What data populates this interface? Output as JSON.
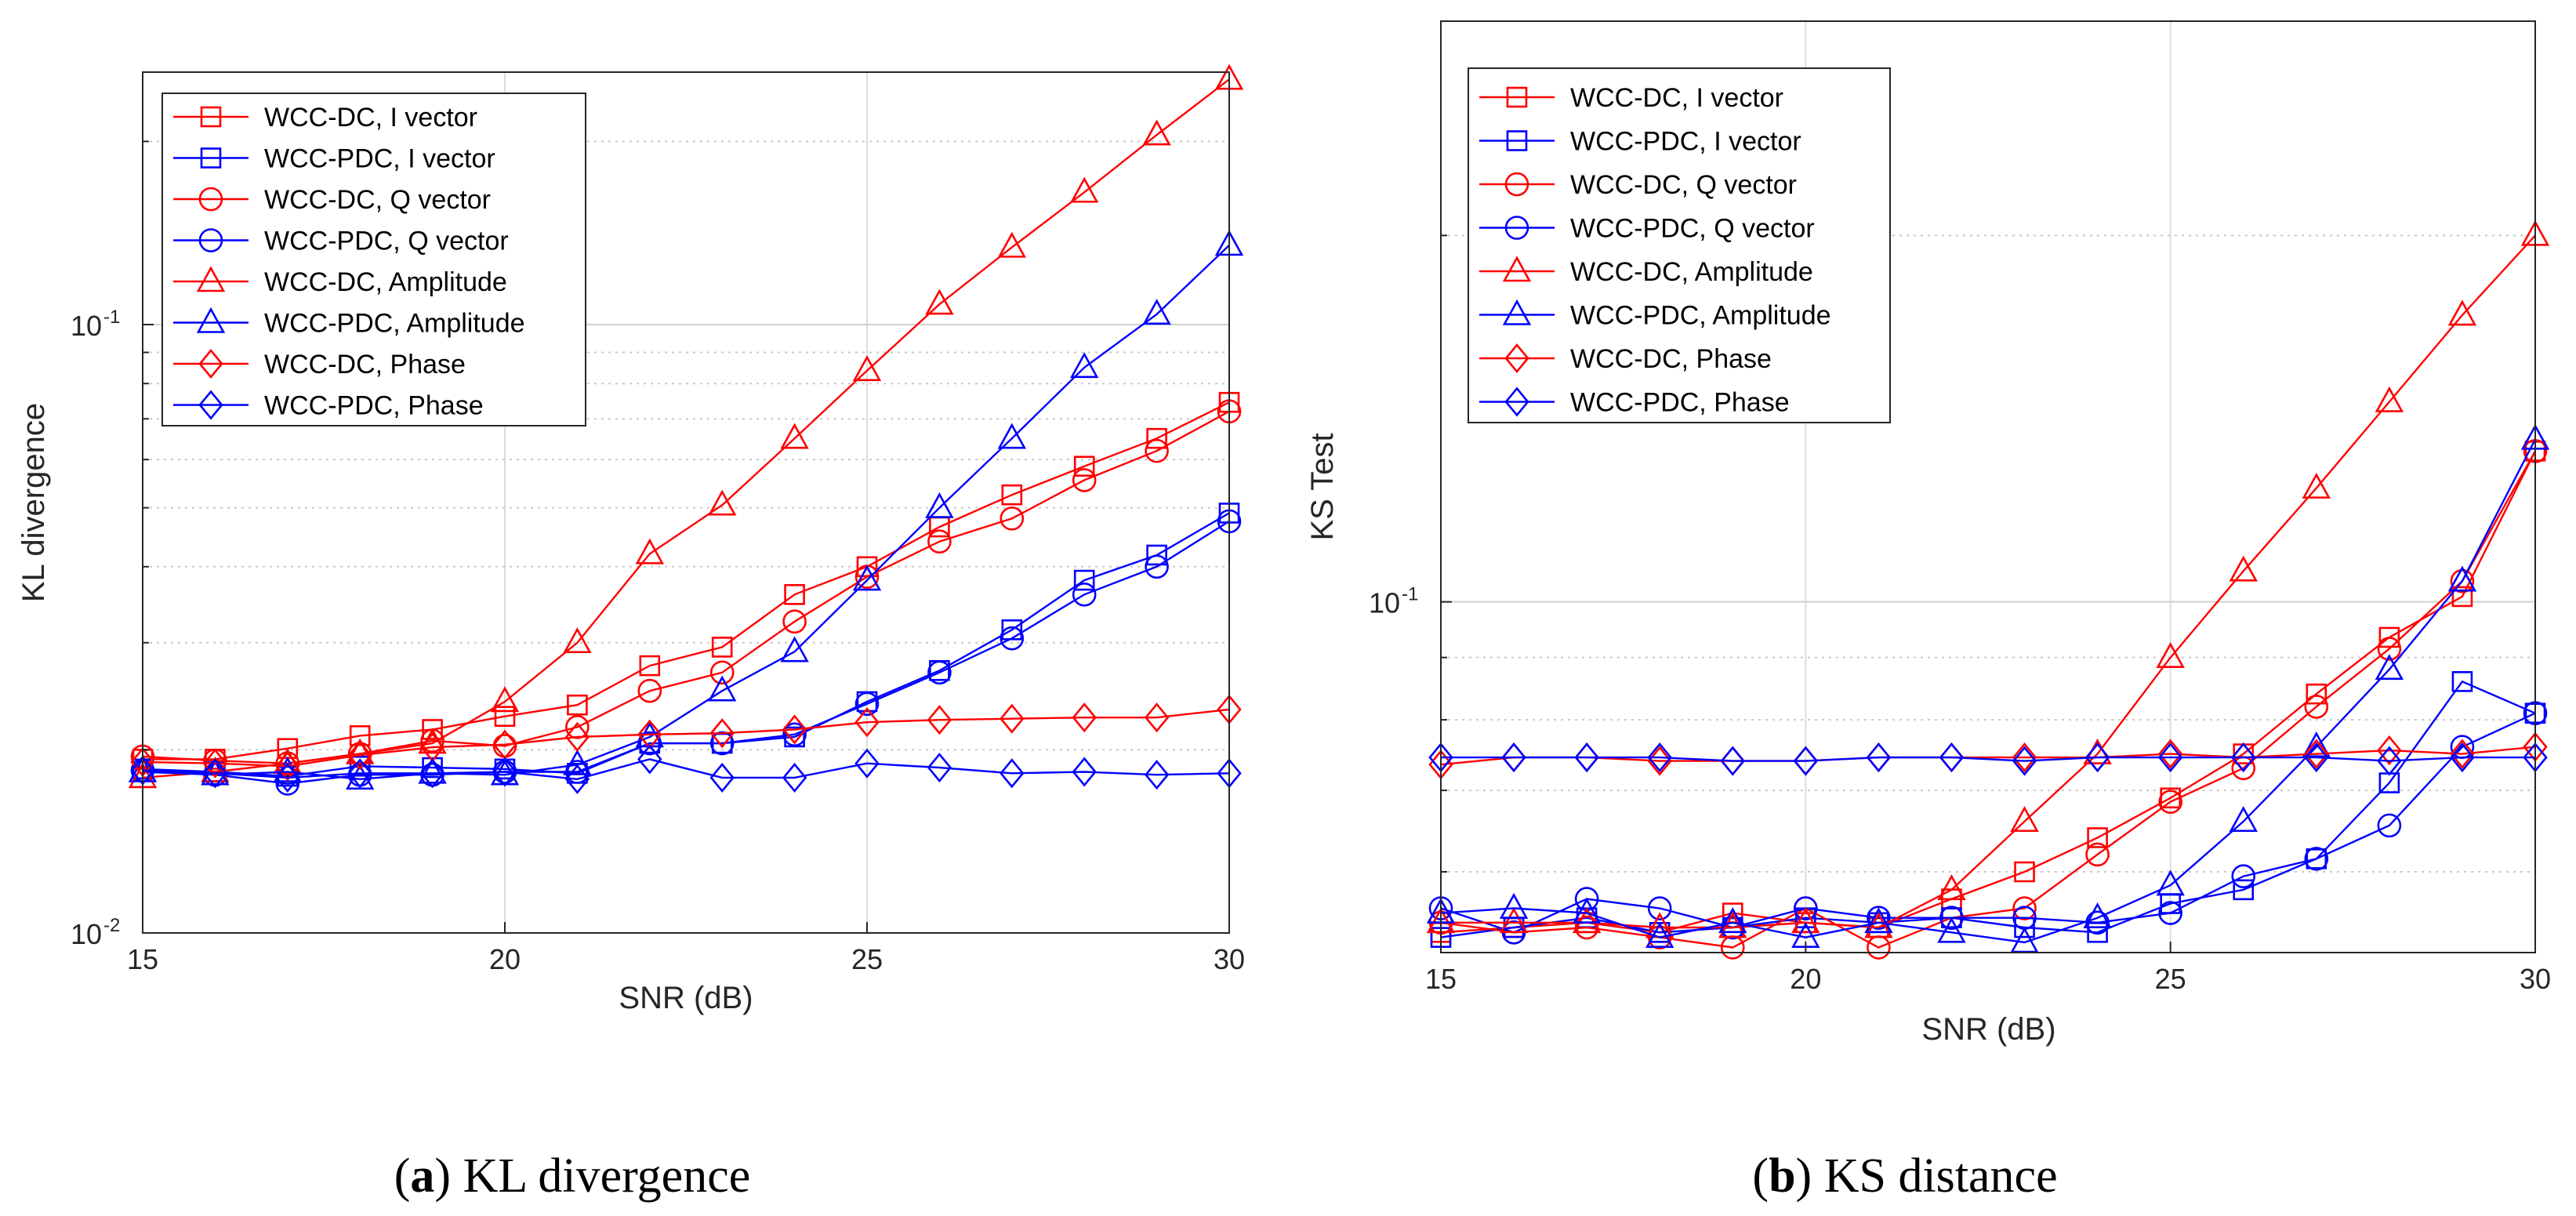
{
  "chart_data": [
    {
      "type": "line",
      "panel_label": "a",
      "caption_text": "KL divergence",
      "xlabel": "SNR (dB)",
      "ylabel": "KL divergence",
      "yscale": "log",
      "xlim": [
        15,
        30
      ],
      "ylim": [
        0.01,
        0.26
      ],
      "xticks": [
        15,
        20,
        25,
        30
      ],
      "yticks": [
        {
          "value": 0.01,
          "base": "10",
          "exp": "-2"
        },
        {
          "value": 0.1,
          "base": "10",
          "exp": "-1"
        }
      ],
      "grid": true,
      "legend_position": "top-left",
      "x": [
        15,
        16,
        17,
        18,
        19,
        20,
        21,
        22,
        23,
        24,
        25,
        26,
        27,
        28,
        29,
        30
      ],
      "series": [
        {
          "name": "WCC-DC, I vector",
          "color": "#ff0000",
          "marker": "square",
          "values": [
            0.0193,
            0.0193,
            0.0201,
            0.0211,
            0.0216,
            0.0227,
            0.0237,
            0.0275,
            0.0295,
            0.036,
            0.04,
            0.0465,
            0.0525,
            0.0585,
            0.065,
            0.0745
          ]
        },
        {
          "name": "WCC-PDC, I vector",
          "color": "#0000ff",
          "marker": "square",
          "values": [
            0.0186,
            0.0184,
            0.0181,
            0.0188,
            0.0187,
            0.0186,
            0.0183,
            0.0205,
            0.0205,
            0.021,
            0.024,
            0.027,
            0.0315,
            0.038,
            0.0418,
            0.049
          ]
        },
        {
          "name": "WCC-DC, Q vector",
          "color": "#ff0000",
          "marker": "circle",
          "values": [
            0.0195,
            0.0192,
            0.019,
            0.0197,
            0.0207,
            0.0203,
            0.0218,
            0.025,
            0.0268,
            0.0325,
            0.0385,
            0.044,
            0.048,
            0.0555,
            0.062,
            0.072
          ]
        },
        {
          "name": "WCC-PDC, Q vector",
          "color": "#0000ff",
          "marker": "circle",
          "values": [
            0.0185,
            0.0182,
            0.0176,
            0.0182,
            0.0182,
            0.0184,
            0.0184,
            0.0205,
            0.0205,
            0.0212,
            0.0238,
            0.0268,
            0.0305,
            0.036,
            0.04,
            0.0475
          ]
        },
        {
          "name": "WCC-DC, Amplitude",
          "color": "#ff0000",
          "marker": "triangle",
          "values": [
            0.018,
            0.0184,
            0.019,
            0.0197,
            0.0205,
            0.024,
            0.03,
            0.042,
            0.0505,
            0.065,
            0.084,
            0.108,
            0.134,
            0.165,
            0.205,
            0.253
          ]
        },
        {
          "name": "WCC-PDC, Amplitude",
          "color": "#0000ff",
          "marker": "triangle",
          "values": [
            0.0184,
            0.0182,
            0.0184,
            0.0179,
            0.0183,
            0.0182,
            0.0189,
            0.021,
            0.025,
            0.029,
            0.038,
            0.05,
            0.065,
            0.085,
            0.104,
            0.135
          ]
        },
        {
          "name": "WCC-DC, Phase",
          "color": "#ff0000",
          "marker": "diamond",
          "values": [
            0.0191,
            0.019,
            0.0188,
            0.0196,
            0.0202,
            0.0204,
            0.021,
            0.0212,
            0.0213,
            0.0216,
            0.0222,
            0.0224,
            0.0225,
            0.0226,
            0.0226,
            0.0233
          ]
        },
        {
          "name": "WCC-PDC, Phase",
          "color": "#0000ff",
          "marker": "diamond",
          "values": [
            0.0185,
            0.0183,
            0.018,
            0.0183,
            0.0183,
            0.0184,
            0.0179,
            0.0193,
            0.018,
            0.018,
            0.019,
            0.0187,
            0.0183,
            0.0184,
            0.0182,
            0.0183
          ]
        }
      ]
    },
    {
      "type": "line",
      "panel_label": "b",
      "caption_text": "KS distance",
      "xlabel": "SNR (dB)",
      "ylabel": "KS Test",
      "yscale": "log",
      "xlim": [
        15,
        30
      ],
      "ylim": [
        0.0515,
        0.3
      ],
      "xticks": [
        15,
        20,
        25,
        30
      ],
      "yticks": [
        {
          "value": 0.1,
          "base": "10",
          "exp": "-1"
        }
      ],
      "grid": true,
      "legend_position": "top-left",
      "x": [
        15,
        16,
        17,
        18,
        19,
        20,
        21,
        22,
        23,
        24,
        25,
        26,
        27,
        28,
        29,
        30
      ],
      "series": [
        {
          "name": "WCC-DC, I vector",
          "color": "#ff0000",
          "marker": "square",
          "values": [
            0.0535,
            0.054,
            0.0545,
            0.0535,
            0.0555,
            0.0545,
            0.054,
            0.057,
            0.06,
            0.064,
            0.069,
            0.075,
            0.084,
            0.0935,
            0.101,
            0.133
          ]
        },
        {
          "name": "WCC-PDC, I vector",
          "color": "#0000ff",
          "marker": "square",
          "values": [
            0.053,
            0.054,
            0.055,
            0.0535,
            0.054,
            0.055,
            0.0545,
            0.055,
            0.054,
            0.0535,
            0.0565,
            0.058,
            0.0615,
            0.071,
            0.086,
            0.081
          ]
        },
        {
          "name": "WCC-DC, Q vector",
          "color": "#ff0000",
          "marker": "circle",
          "values": [
            0.0545,
            0.0535,
            0.054,
            0.053,
            0.052,
            0.056,
            0.052,
            0.055,
            0.056,
            0.062,
            0.0685,
            0.073,
            0.082,
            0.0915,
            0.104,
            0.133
          ]
        },
        {
          "name": "WCC-PDC, Q vector",
          "color": "#0000ff",
          "marker": "circle",
          "values": [
            0.056,
            0.0535,
            0.057,
            0.056,
            0.054,
            0.056,
            0.055,
            0.055,
            0.055,
            0.0545,
            0.0555,
            0.0595,
            0.0615,
            0.0655,
            0.076,
            0.081
          ]
        },
        {
          "name": "WCC-DC, Amplitude",
          "color": "#ff0000",
          "marker": "triangle",
          "values": [
            0.0545,
            0.0545,
            0.0545,
            0.054,
            0.054,
            0.0545,
            0.054,
            0.058,
            0.066,
            0.075,
            0.09,
            0.106,
            0.124,
            0.146,
            0.172,
            0.2
          ]
        },
        {
          "name": "WCC-PDC, Amplitude",
          "color": "#0000ff",
          "marker": "triangle",
          "values": [
            0.0555,
            0.056,
            0.0555,
            0.053,
            0.0545,
            0.053,
            0.0545,
            0.0535,
            0.0525,
            0.055,
            0.0585,
            0.066,
            0.076,
            0.088,
            0.104,
            0.136
          ]
        },
        {
          "name": "WCC-DC, Phase",
          "color": "#ff0000",
          "marker": "diamond",
          "values": [
            0.0735,
            0.0745,
            0.0745,
            0.074,
            0.074,
            0.074,
            0.0745,
            0.0745,
            0.0745,
            0.0745,
            0.075,
            0.0745,
            0.075,
            0.0755,
            0.075,
            0.076
          ]
        },
        {
          "name": "WCC-PDC, Phase",
          "color": "#0000ff",
          "marker": "diamond",
          "values": [
            0.0745,
            0.0745,
            0.0745,
            0.0745,
            0.074,
            0.074,
            0.0745,
            0.0745,
            0.074,
            0.0745,
            0.0745,
            0.0745,
            0.0745,
            0.074,
            0.0745,
            0.0745
          ]
        }
      ]
    }
  ]
}
